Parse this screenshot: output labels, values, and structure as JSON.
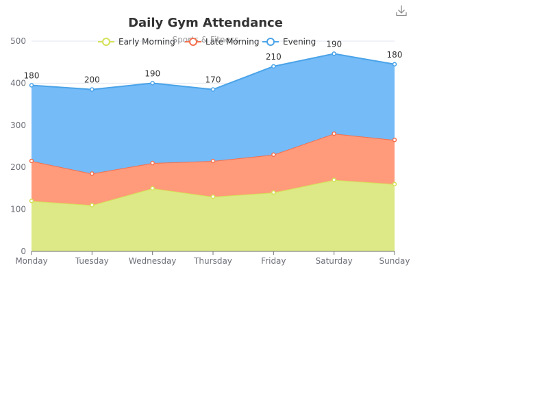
{
  "chart_data": {
    "type": "area",
    "stacked": true,
    "title": "Daily Gym Attendance",
    "subtitle": "Sports & Fitness",
    "categories": [
      "Monday",
      "Tuesday",
      "Wednesday",
      "Thursday",
      "Friday",
      "Saturday",
      "Sunday"
    ],
    "series": [
      {
        "name": "Early Morning",
        "values": [
          120,
          110,
          150,
          130,
          140,
          170,
          160
        ],
        "color": "#d4e157",
        "fill": "#dde886"
      },
      {
        "name": "Late Morning",
        "values": [
          95,
          75,
          60,
          85,
          90,
          110,
          105
        ],
        "color": "#f4704e",
        "fill": "#ff9a7a"
      },
      {
        "name": "Evening",
        "values": [
          180,
          200,
          190,
          170,
          210,
          190,
          180
        ],
        "color": "#4aa3e8",
        "fill": "#74bbf8"
      }
    ],
    "data_labels_series": "Evening",
    "ylim": [
      0,
      500
    ],
    "yticks": [
      0,
      100,
      200,
      300,
      400,
      500
    ],
    "grid": true,
    "legend_position": "top-center"
  },
  "toolbar": {
    "icon": "download-icon"
  }
}
